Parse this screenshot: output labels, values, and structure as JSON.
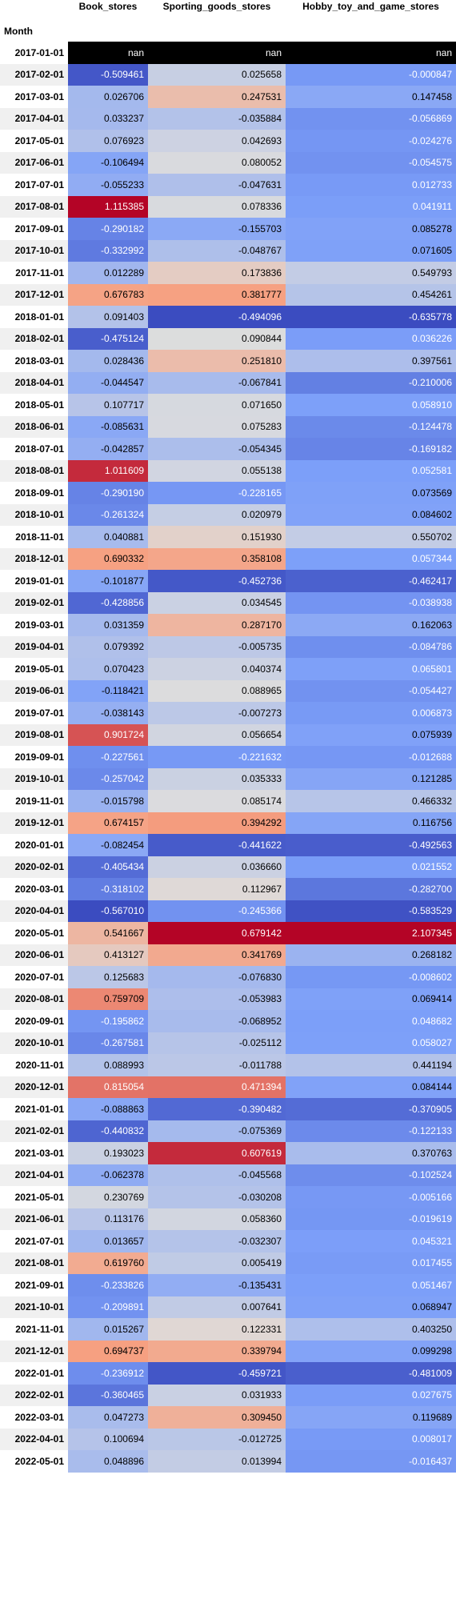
{
  "table": {
    "index_name": "Month",
    "columns": [
      "Book_stores",
      "Sporting_goods_stores",
      "Hobby_toy_and_game_stores"
    ],
    "color_scale": {
      "low": "#3b4cc0",
      "mid": "#dddddd",
      "high": "#b40426",
      "nan": "#000000"
    },
    "rows": [
      {
        "month": "2017-01-01",
        "values": [
          "nan",
          "nan",
          "nan"
        ]
      },
      {
        "month": "2017-02-01",
        "values": [
          "-0.509461",
          "0.025658",
          "-0.000847"
        ]
      },
      {
        "month": "2017-03-01",
        "values": [
          "0.026706",
          "0.247531",
          "0.147458"
        ]
      },
      {
        "month": "2017-04-01",
        "values": [
          "0.033237",
          "-0.035884",
          "-0.056869"
        ]
      },
      {
        "month": "2017-05-01",
        "values": [
          "0.076923",
          "0.042693",
          "-0.024276"
        ]
      },
      {
        "month": "2017-06-01",
        "values": [
          "-0.106494",
          "0.080052",
          "-0.054575"
        ]
      },
      {
        "month": "2017-07-01",
        "values": [
          "-0.055233",
          "-0.047631",
          "0.012733"
        ]
      },
      {
        "month": "2017-08-01",
        "values": [
          "1.115385",
          "0.078336",
          "0.041911"
        ]
      },
      {
        "month": "2017-09-01",
        "values": [
          "-0.290182",
          "-0.155703",
          "0.085278"
        ]
      },
      {
        "month": "2017-10-01",
        "values": [
          "-0.332992",
          "-0.048767",
          "0.071605"
        ]
      },
      {
        "month": "2017-11-01",
        "values": [
          "0.012289",
          "0.173836",
          "0.549793"
        ]
      },
      {
        "month": "2017-12-01",
        "values": [
          "0.676783",
          "0.381777",
          "0.454261"
        ]
      },
      {
        "month": "2018-01-01",
        "values": [
          "0.091403",
          "-0.494096",
          "-0.635778"
        ]
      },
      {
        "month": "2018-02-01",
        "values": [
          "-0.475124",
          "0.090844",
          "0.036226"
        ]
      },
      {
        "month": "2018-03-01",
        "values": [
          "0.028436",
          "0.251810",
          "0.397561"
        ]
      },
      {
        "month": "2018-04-01",
        "values": [
          "-0.044547",
          "-0.067841",
          "-0.210006"
        ]
      },
      {
        "month": "2018-05-01",
        "values": [
          "0.107717",
          "0.071650",
          "0.058910"
        ]
      },
      {
        "month": "2018-06-01",
        "values": [
          "-0.085631",
          "0.075283",
          "-0.124478"
        ]
      },
      {
        "month": "2018-07-01",
        "values": [
          "-0.042857",
          "-0.054345",
          "-0.169182"
        ]
      },
      {
        "month": "2018-08-01",
        "values": [
          "1.011609",
          "0.055138",
          "0.052581"
        ]
      },
      {
        "month": "2018-09-01",
        "values": [
          "-0.290190",
          "-0.228165",
          "0.073569"
        ]
      },
      {
        "month": "2018-10-01",
        "values": [
          "-0.261324",
          "0.020979",
          "0.084602"
        ]
      },
      {
        "month": "2018-11-01",
        "values": [
          "0.040881",
          "0.151930",
          "0.550702"
        ]
      },
      {
        "month": "2018-12-01",
        "values": [
          "0.690332",
          "0.358108",
          "0.057344"
        ]
      },
      {
        "month": "2019-01-01",
        "values": [
          "-0.101877",
          "-0.452736",
          "-0.462417"
        ]
      },
      {
        "month": "2019-02-01",
        "values": [
          "-0.428856",
          "0.034545",
          "-0.038938"
        ]
      },
      {
        "month": "2019-03-01",
        "values": [
          "0.031359",
          "0.287170",
          "0.162063"
        ]
      },
      {
        "month": "2019-04-01",
        "values": [
          "0.079392",
          "-0.005735",
          "-0.084786"
        ]
      },
      {
        "month": "2019-05-01",
        "values": [
          "0.070423",
          "0.040374",
          "0.065801"
        ]
      },
      {
        "month": "2019-06-01",
        "values": [
          "-0.118421",
          "0.088965",
          "-0.054427"
        ]
      },
      {
        "month": "2019-07-01",
        "values": [
          "-0.038143",
          "-0.007273",
          "0.006873"
        ]
      },
      {
        "month": "2019-08-01",
        "values": [
          "0.901724",
          "0.056654",
          "0.075939"
        ]
      },
      {
        "month": "2019-09-01",
        "values": [
          "-0.227561",
          "-0.221632",
          "-0.012688"
        ]
      },
      {
        "month": "2019-10-01",
        "values": [
          "-0.257042",
          "0.035333",
          "0.121285"
        ]
      },
      {
        "month": "2019-11-01",
        "values": [
          "-0.015798",
          "0.085174",
          "0.466332"
        ]
      },
      {
        "month": "2019-12-01",
        "values": [
          "0.674157",
          "0.394292",
          "0.116756"
        ]
      },
      {
        "month": "2020-01-01",
        "values": [
          "-0.082454",
          "-0.441622",
          "-0.492563"
        ]
      },
      {
        "month": "2020-02-01",
        "values": [
          "-0.405434",
          "0.036660",
          "0.021552"
        ]
      },
      {
        "month": "2020-03-01",
        "values": [
          "-0.318102",
          "0.112967",
          "-0.282700"
        ]
      },
      {
        "month": "2020-04-01",
        "values": [
          "-0.567010",
          "-0.245366",
          "-0.583529"
        ]
      },
      {
        "month": "2020-05-01",
        "values": [
          "0.541667",
          "0.679142",
          "2.107345"
        ]
      },
      {
        "month": "2020-06-01",
        "values": [
          "0.413127",
          "0.341769",
          "0.268182"
        ]
      },
      {
        "month": "2020-07-01",
        "values": [
          "0.125683",
          "-0.076830",
          "-0.008602"
        ]
      },
      {
        "month": "2020-08-01",
        "values": [
          "0.759709",
          "-0.053983",
          "0.069414"
        ]
      },
      {
        "month": "2020-09-01",
        "values": [
          "-0.195862",
          "-0.068952",
          "0.048682"
        ]
      },
      {
        "month": "2020-10-01",
        "values": [
          "-0.267581",
          "-0.025112",
          "0.058027"
        ]
      },
      {
        "month": "2020-11-01",
        "values": [
          "0.088993",
          "-0.011788",
          "0.441194"
        ]
      },
      {
        "month": "2020-12-01",
        "values": [
          "0.815054",
          "0.471394",
          "0.084144"
        ]
      },
      {
        "month": "2021-01-01",
        "values": [
          "-0.088863",
          "-0.390482",
          "-0.370905"
        ]
      },
      {
        "month": "2021-02-01",
        "values": [
          "-0.440832",
          "-0.075369",
          "-0.122133"
        ]
      },
      {
        "month": "2021-03-01",
        "values": [
          "0.193023",
          "0.607619",
          "0.370763"
        ]
      },
      {
        "month": "2021-04-01",
        "values": [
          "-0.062378",
          "-0.045568",
          "-0.102524"
        ]
      },
      {
        "month": "2021-05-01",
        "values": [
          "0.230769",
          "-0.030208",
          "-0.005166"
        ]
      },
      {
        "month": "2021-06-01",
        "values": [
          "0.113176",
          "0.058360",
          "-0.019619"
        ]
      },
      {
        "month": "2021-07-01",
        "values": [
          "0.013657",
          "-0.032307",
          "0.045321"
        ]
      },
      {
        "month": "2021-08-01",
        "values": [
          "0.619760",
          "0.005419",
          "0.017455"
        ]
      },
      {
        "month": "2021-09-01",
        "values": [
          "-0.233826",
          "-0.135431",
          "0.051467"
        ]
      },
      {
        "month": "2021-10-01",
        "values": [
          "-0.209891",
          "0.007641",
          "0.068947"
        ]
      },
      {
        "month": "2021-11-01",
        "values": [
          "0.015267",
          "0.122331",
          "0.403250"
        ]
      },
      {
        "month": "2021-12-01",
        "values": [
          "0.694737",
          "0.339794",
          "0.099298"
        ]
      },
      {
        "month": "2022-01-01",
        "values": [
          "-0.236912",
          "-0.459721",
          "-0.481009"
        ]
      },
      {
        "month": "2022-02-01",
        "values": [
          "-0.360465",
          "0.031933",
          "0.027675"
        ]
      },
      {
        "month": "2022-03-01",
        "values": [
          "0.047273",
          "0.309450",
          "0.119689"
        ]
      },
      {
        "month": "2022-04-01",
        "values": [
          "0.100694",
          "-0.012725",
          "0.008017"
        ]
      },
      {
        "month": "2022-05-01",
        "values": [
          "0.048896",
          "0.013994",
          "-0.016437"
        ]
      }
    ]
  }
}
